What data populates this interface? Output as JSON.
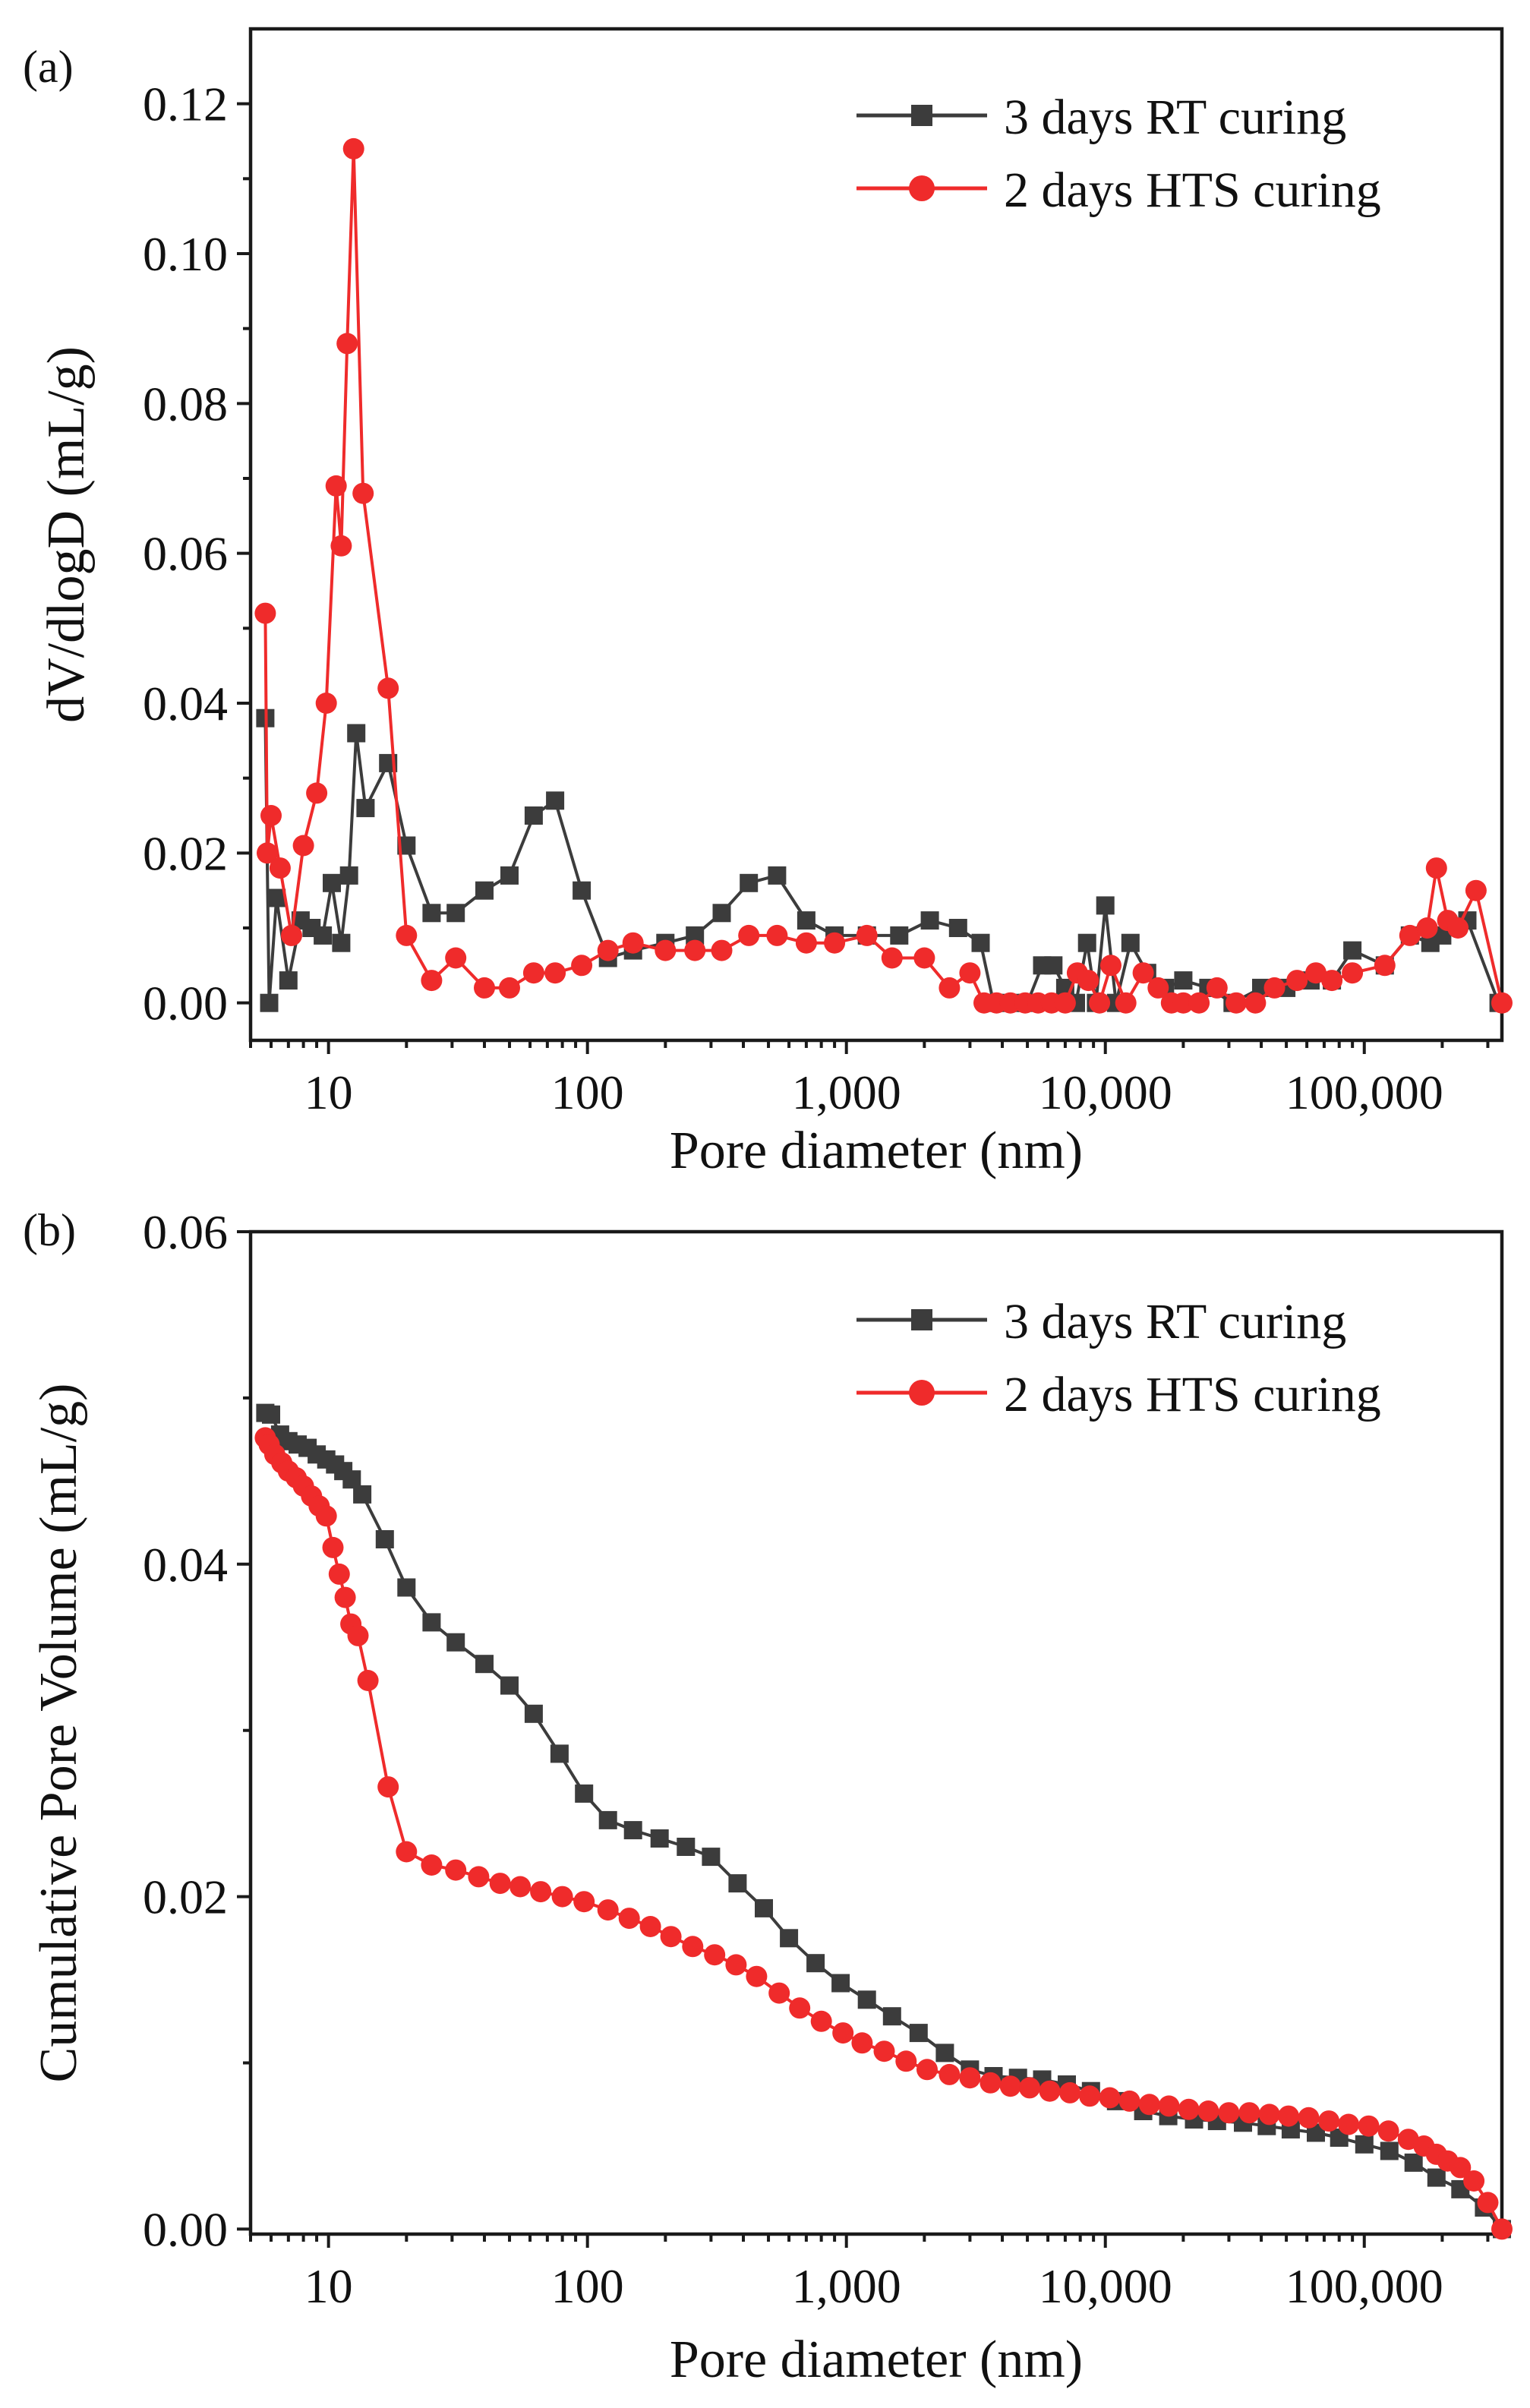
{
  "chart_data": [
    {
      "panel": "(a)",
      "type": "line",
      "xlabel": "Pore diameter (nm)",
      "ylabel": "dV/dlogD  (mL/g)",
      "xscale": "log",
      "xlim": [
        5,
        340000
      ],
      "ylim": [
        -0.005,
        0.13
      ],
      "xticks": [
        10,
        100,
        1000,
        10000,
        100000
      ],
      "xtick_labels": [
        "10",
        "100",
        "1,000",
        "10,000",
        "100,000"
      ],
      "yticks": [
        0.0,
        0.02,
        0.04,
        0.06,
        0.08,
        0.1,
        0.12
      ],
      "ytick_labels": [
        "0.00",
        "0.02",
        "0.04",
        "0.06",
        "0.08",
        "0.10",
        "0.12"
      ],
      "legend_position": "top-right",
      "series": [
        {
          "name": "3 days RT curing",
          "color": "#3c3c3c",
          "marker": "square",
          "x": [
            5.7,
            5.9,
            6.3,
            7.0,
            7.8,
            8.6,
            9.5,
            10.3,
            11.2,
            12.0,
            12.8,
            13.9,
            17.0,
            20.0,
            25.0,
            31.0,
            40.0,
            50.0,
            62.0,
            75.0,
            95.0,
            120.0,
            150.0,
            200.0,
            260.0,
            330.0,
            420.0,
            540.0,
            700.0,
            900.0,
            1200.0,
            1600.0,
            2100.0,
            2700.0,
            3300.0,
            3700.0,
            4300.0,
            5000.0,
            5700.0,
            6300.0,
            7000.0,
            7700.0,
            8500.0,
            9200.0,
            10000.0,
            11000.0,
            12500.0,
            14500.0,
            17000.0,
            20000.0,
            25000.0,
            31000.0,
            40000.0,
            50000.0,
            62000.0,
            75000.0,
            90000.0,
            120000.0,
            150000.0,
            180000.0,
            200000.0,
            250000.0,
            330000.0
          ],
          "y": [
            0.038,
            0.0,
            0.014,
            0.003,
            0.011,
            0.01,
            0.009,
            0.016,
            0.008,
            0.017,
            0.036,
            0.026,
            0.032,
            0.021,
            0.012,
            0.012,
            0.015,
            0.017,
            0.025,
            0.027,
            0.015,
            0.006,
            0.007,
            0.008,
            0.009,
            0.012,
            0.016,
            0.017,
            0.011,
            0.009,
            0.009,
            0.009,
            0.011,
            0.01,
            0.008,
            0.0,
            0.0,
            0.0,
            0.005,
            0.005,
            0.002,
            0.0,
            0.008,
            0.0,
            0.013,
            0.0,
            0.008,
            0.004,
            0.002,
            0.003,
            0.002,
            0.0,
            0.002,
            0.002,
            0.003,
            0.003,
            0.007,
            0.005,
            0.009,
            0.008,
            0.009,
            0.011,
            0.0
          ]
        },
        {
          "name": "2 days HTS curing",
          "color": "#ef2b2b",
          "marker": "circle",
          "x": [
            5.7,
            5.8,
            6.0,
            6.5,
            7.2,
            8.0,
            9.0,
            9.8,
            10.7,
            11.2,
            11.8,
            12.5,
            13.6,
            17.0,
            20.0,
            25.0,
            31.0,
            40.0,
            50.0,
            62.0,
            75.0,
            95.0,
            120.0,
            150.0,
            200.0,
            260.0,
            330.0,
            420.0,
            540.0,
            700.0,
            900.0,
            1200.0,
            1500.0,
            2000.0,
            2500.0,
            3000.0,
            3400.0,
            3800.0,
            4300.0,
            4900.0,
            5500.0,
            6200.0,
            7000.0,
            7800.0,
            8600.0,
            9500.0,
            10500.0,
            12000.0,
            14000.0,
            16000.0,
            18000.0,
            20000.0,
            23000.0,
            27000.0,
            32000.0,
            38000.0,
            45000.0,
            55000.0,
            65000.0,
            75000.0,
            90000.0,
            120000.0,
            150000.0,
            175000.0,
            190000.0,
            210000.0,
            230000.0,
            270000.0,
            340000.0
          ],
          "y": [
            0.052,
            0.02,
            0.025,
            0.018,
            0.009,
            0.021,
            0.028,
            0.04,
            0.069,
            0.061,
            0.088,
            0.114,
            0.068,
            0.042,
            0.009,
            0.003,
            0.006,
            0.002,
            0.002,
            0.004,
            0.004,
            0.005,
            0.007,
            0.008,
            0.007,
            0.007,
            0.007,
            0.009,
            0.009,
            0.008,
            0.008,
            0.009,
            0.006,
            0.006,
            0.002,
            0.004,
            0.0,
            0.0,
            0.0,
            0.0,
            0.0,
            0.0,
            0.0,
            0.004,
            0.003,
            0.0,
            0.005,
            0.0,
            0.004,
            0.002,
            0.0,
            0.0,
            0.0,
            0.002,
            0.0,
            0.0,
            0.002,
            0.003,
            0.004,
            0.003,
            0.004,
            0.005,
            0.009,
            0.01,
            0.018,
            0.011,
            0.01,
            0.015,
            0.0
          ]
        }
      ]
    },
    {
      "panel": "(b)",
      "type": "line",
      "xlabel": "Pore diameter (nm)",
      "ylabel": "Cumulative Pore Volume  (mL/g)",
      "xscale": "log",
      "xlim": [
        5,
        340000
      ],
      "ylim": [
        -0.0003,
        0.06
      ],
      "xticks": [
        10,
        100,
        1000,
        10000,
        100000
      ],
      "xtick_labels": [
        "10",
        "100",
        "1,000",
        "10,000",
        "100,000"
      ],
      "yticks": [
        0.0,
        0.02,
        0.04,
        0.06
      ],
      "ytick_labels": [
        "0.00",
        "0.02",
        "0.04",
        "0.06"
      ],
      "legend_position": "top-right",
      "series": [
        {
          "name": "3 days RT curing",
          "color": "#3c3c3c",
          "marker": "square",
          "x": [
            5.7,
            6.0,
            6.5,
            7.0,
            7.6,
            8.3,
            9.0,
            9.8,
            10.6,
            11.4,
            12.3,
            13.5,
            16.5,
            20.0,
            25.0,
            31.0,
            40.0,
            50.0,
            62.0,
            78.0,
            97.0,
            120.0,
            150.0,
            190.0,
            240.0,
            300.0,
            380.0,
            480.0,
            600.0,
            760.0,
            950.0,
            1200.0,
            1500.0,
            1900.0,
            2400.0,
            3000.0,
            3700.0,
            4600.0,
            5700.0,
            7100.0,
            8800.0,
            11000.0,
            14000.0,
            17500.0,
            22000.0,
            27000.0,
            34000.0,
            42000.0,
            52000.0,
            65000.0,
            80000.0,
            100000.0,
            125000.0,
            155000.0,
            190000.0,
            235000.0,
            290000.0,
            340000.0
          ],
          "y": [
            0.0491,
            0.049,
            0.0478,
            0.0474,
            0.0472,
            0.047,
            0.0466,
            0.0463,
            0.046,
            0.0456,
            0.0451,
            0.0442,
            0.0415,
            0.0386,
            0.0365,
            0.0353,
            0.034,
            0.0327,
            0.031,
            0.0286,
            0.0262,
            0.0246,
            0.024,
            0.0235,
            0.023,
            0.0224,
            0.0208,
            0.0193,
            0.0175,
            0.016,
            0.0148,
            0.0138,
            0.0128,
            0.0118,
            0.0106,
            0.0096,
            0.0092,
            0.0091,
            0.009,
            0.0087,
            0.0083,
            0.0077,
            0.0071,
            0.0068,
            0.0066,
            0.0065,
            0.0064,
            0.0062,
            0.006,
            0.0058,
            0.0055,
            0.0051,
            0.0047,
            0.004,
            0.0031,
            0.0024,
            0.0013,
            0.0
          ]
        },
        {
          "name": "2 days HTS curing",
          "color": "#ef2b2b",
          "marker": "circle",
          "x": [
            5.7,
            5.9,
            6.2,
            6.6,
            7.0,
            7.5,
            8.0,
            8.6,
            9.2,
            9.8,
            10.4,
            11.0,
            11.6,
            12.2,
            13.0,
            14.2,
            17.0,
            20.0,
            25.0,
            31.0,
            38.0,
            46.0,
            55.0,
            66.0,
            80.0,
            97.0,
            120.0,
            145.0,
            175.0,
            210.0,
            255.0,
            310.0,
            375.0,
            450.0,
            550.0,
            660.0,
            800.0,
            970.0,
            1150.0,
            1400.0,
            1700.0,
            2050.0,
            2500.0,
            3000.0,
            3600.0,
            4300.0,
            5100.0,
            6100.0,
            7300.0,
            8700.0,
            10400.0,
            12400.0,
            14800.0,
            17600.0,
            21000.0,
            25000.0,
            30000.0,
            36000.0,
            43000.0,
            51000.0,
            61000.0,
            73000.0,
            87000.0,
            104000.0,
            124000.0,
            148000.0,
            170000.0,
            190000.0,
            210000.0,
            235000.0,
            265000.0,
            300000.0,
            340000.0
          ],
          "y": [
            0.0476,
            0.0472,
            0.0466,
            0.0461,
            0.0456,
            0.0452,
            0.0447,
            0.0441,
            0.0435,
            0.0429,
            0.041,
            0.0394,
            0.038,
            0.0364,
            0.0357,
            0.033,
            0.0266,
            0.0227,
            0.0219,
            0.0216,
            0.0212,
            0.0208,
            0.0206,
            0.0203,
            0.02,
            0.0197,
            0.0192,
            0.0187,
            0.0182,
            0.0176,
            0.017,
            0.0165,
            0.0159,
            0.0152,
            0.0142,
            0.0133,
            0.0125,
            0.0118,
            0.0112,
            0.0107,
            0.0101,
            0.0096,
            0.0093,
            0.0091,
            0.0088,
            0.0086,
            0.0085,
            0.0083,
            0.0082,
            0.008,
            0.0079,
            0.0077,
            0.0075,
            0.0074,
            0.0072,
            0.0071,
            0.007,
            0.007,
            0.0069,
            0.0068,
            0.0067,
            0.0065,
            0.0063,
            0.0062,
            0.0059,
            0.0054,
            0.005,
            0.0045,
            0.0041,
            0.0037,
            0.0029,
            0.0016,
            0.0
          ]
        }
      ]
    }
  ]
}
